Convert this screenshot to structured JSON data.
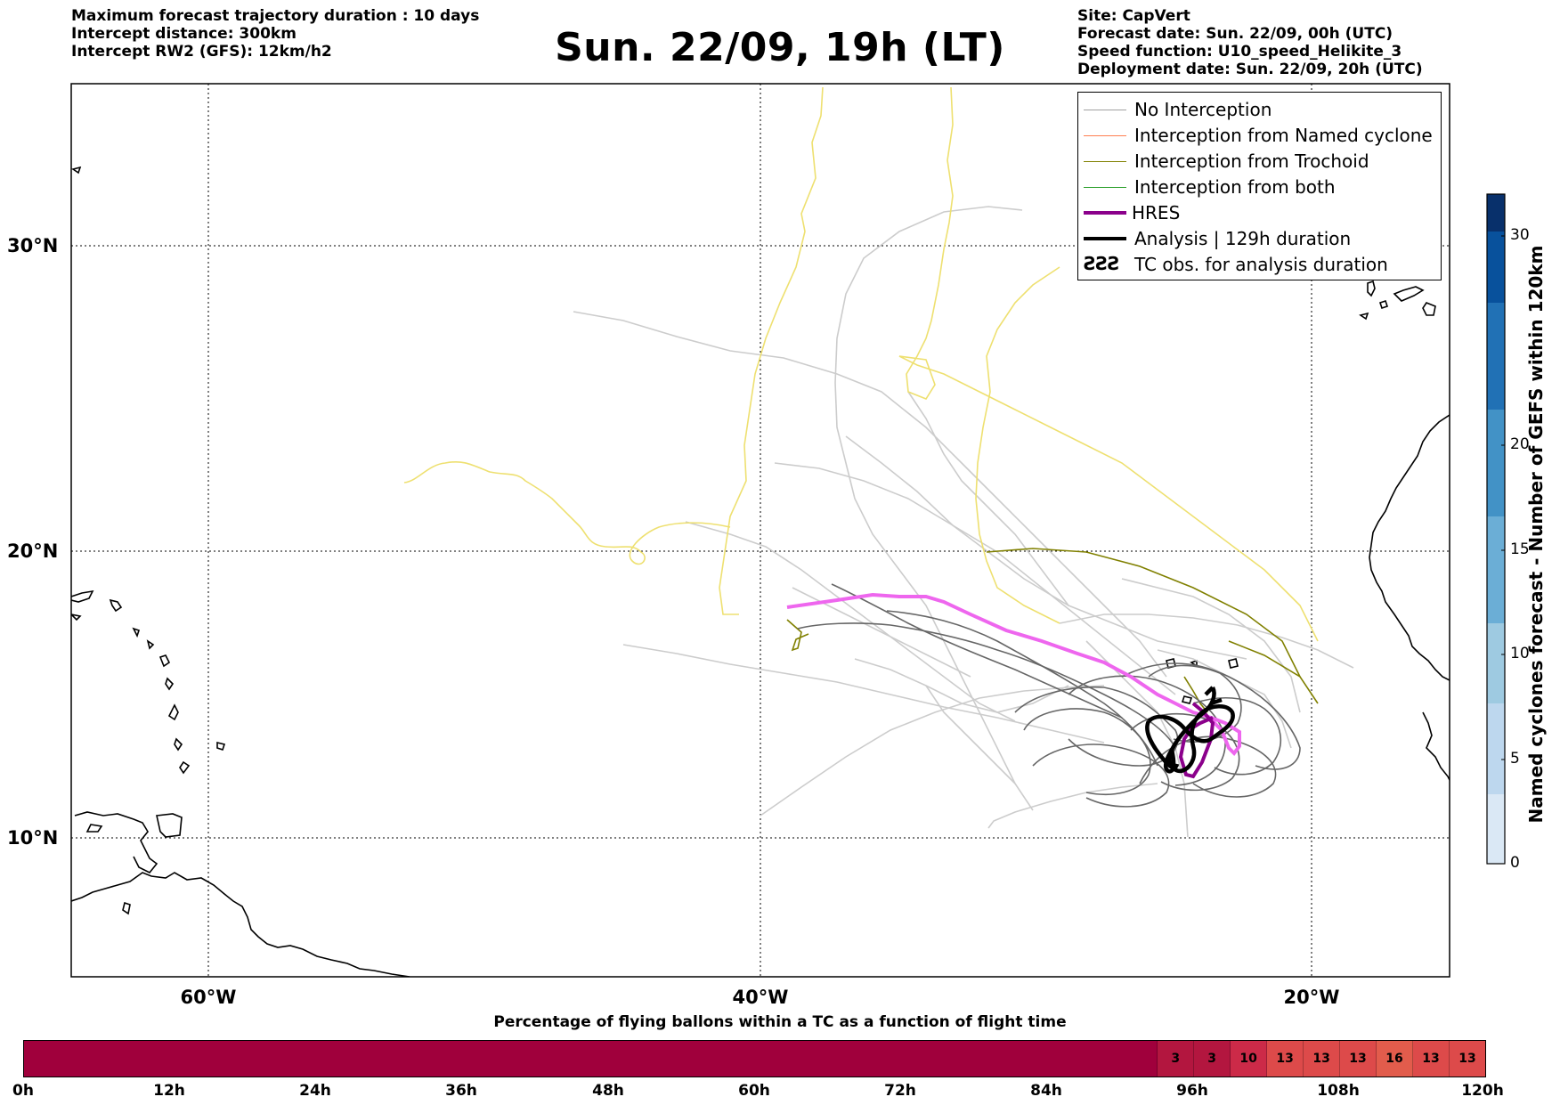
{
  "header": {
    "left_lines": [
      "Maximum forecast trajectory duration : 10 days",
      "Intercept distance: 300km",
      "Intercept RW2 (GFS):  12km/h2"
    ],
    "title": "Sun. 22/09, 19h (LT)",
    "right_lines": [
      "Site: CapVert",
      "Forecast date: Sun. 22/09, 00h (UTC)",
      "Speed function: U10_speed_Helikite_3",
      "Deployment date: Sun. 22/09, 20h (UTC)"
    ]
  },
  "map": {
    "lat_labels": [
      "30°N",
      "20°N",
      "10°N"
    ],
    "lon_labels": [
      "60°W",
      "40°W",
      "20°W"
    ],
    "colors": {
      "no_interception": "#a0a0a0",
      "named_cyclone": "#ff7f50",
      "trochoid": "#808000",
      "both": "#2ca02c",
      "hres": "#8b008b",
      "hres_track": "#ee66ee",
      "analysis": "#000000",
      "yellow_track": "#eee070",
      "light_track": "#cccccc",
      "dark_track": "#666666"
    }
  },
  "legend": {
    "items": [
      {
        "label": "No Interception",
        "swatch": "thin-gray"
      },
      {
        "label": "Interception from Named cyclone",
        "swatch": "thin-orange"
      },
      {
        "label": "Interception from Trochoid",
        "swatch": "thin-olive"
      },
      {
        "label": "Interception from both",
        "swatch": "thin-green"
      },
      {
        "label": "HRES",
        "swatch": "thick-purple"
      },
      {
        "label": "Analysis | 129h duration",
        "swatch": "thick-black"
      },
      {
        "label": "TC obs. for analysis duration",
        "swatch": "cyclone-symbols"
      }
    ],
    "tc_symbol": "ƧƧƧ"
  },
  "colorbar": {
    "label": "Named cyclones forecast - Number of GEFS within 120km",
    "ticks": [
      "0",
      "5",
      "10",
      "15",
      "20",
      "30"
    ],
    "colors": [
      "#dae8f5",
      "#9ecae1",
      "#6baed6",
      "#4292c6",
      "#2171b5",
      "#08519c",
      "#08306b"
    ]
  },
  "timebar": {
    "title": "Percentage of flying ballons within a TC as a function of flight time",
    "tick_labels": [
      "0h",
      "12h",
      "24h",
      "36h",
      "48h",
      "60h",
      "72h",
      "84h",
      "96h",
      "108h",
      "120h"
    ],
    "base_color": "#a0003c",
    "percent_values": [
      3,
      3,
      10,
      13,
      13,
      13,
      16,
      13,
      13
    ],
    "percent_colors": [
      "#b3163f",
      "#b3163f",
      "#cc2a48",
      "#dd4a4a",
      "#dd4a4a",
      "#dd4a4a",
      "#e25c4c",
      "#dd4a4a",
      "#dd4a4a"
    ]
  }
}
